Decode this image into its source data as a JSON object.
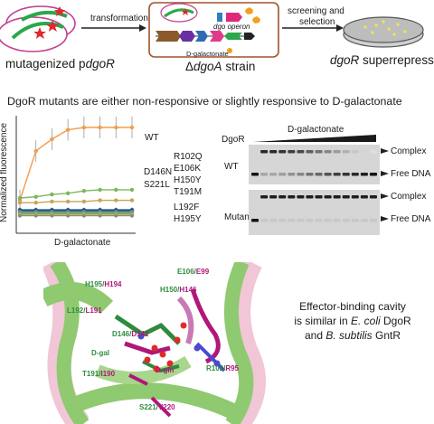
{
  "top": {
    "arrow1_label": "transformation",
    "left_caption_prefix": "mutagenized p",
    "left_caption_italic": "dgoR",
    "box_gal_label": "D-galactonate",
    "box_operon_label": "dgo operon",
    "box_strain_prefix": "Δ",
    "box_strain_italic": "dgoA",
    "box_strain_suffix": " strain",
    "arrow2_label_line1": "screening and",
    "arrow2_label_line2": "selection",
    "right_caption_italic": "dgoR",
    "right_caption_suffix": " superrepressors"
  },
  "headline": "DgoR mutants are either non-responsive or slightly responsive to D-galactonate",
  "chart": {
    "ylabel": "Normalized fluorescence",
    "xlabel": "D-galactonate",
    "wt_label": "WT",
    "mutant_labels": [
      "R102Q",
      "E106K",
      "H150Y",
      "T191M",
      "L192F",
      "H195Y"
    ],
    "d146n_label": "D146N",
    "s221l_label": "S221L"
  },
  "chart_data": {
    "type": "line",
    "title": "",
    "xlabel": "D-galactonate",
    "ylabel": "Normalized fluorescence",
    "x": [
      0,
      1,
      2,
      3,
      4,
      5,
      6,
      7
    ],
    "series": [
      {
        "name": "WT",
        "color": "#f39c4c",
        "values": [
          0.28,
          0.7,
          0.8,
          0.88,
          0.9,
          0.9,
          0.9,
          0.9
        ]
      },
      {
        "name": "D146N",
        "color": "#7bb661",
        "values": [
          0.3,
          0.31,
          0.33,
          0.34,
          0.36,
          0.37,
          0.37,
          0.37
        ]
      },
      {
        "name": "S221L",
        "color": "#c8a35a",
        "values": [
          0.26,
          0.26,
          0.27,
          0.27,
          0.27,
          0.28,
          0.28,
          0.28
        ]
      },
      {
        "name": "R102Q",
        "color": "#2f6ab3",
        "values": [
          0.2,
          0.2,
          0.2,
          0.2,
          0.2,
          0.2,
          0.2,
          0.2
        ]
      },
      {
        "name": "E106K",
        "color": "#3b3b3b",
        "values": [
          0.19,
          0.19,
          0.19,
          0.19,
          0.19,
          0.19,
          0.19,
          0.19
        ]
      },
      {
        "name": "H150Y",
        "color": "#6db6d6",
        "values": [
          0.18,
          0.18,
          0.18,
          0.18,
          0.18,
          0.18,
          0.18,
          0.18
        ]
      },
      {
        "name": "T191M",
        "color": "#3a8f3a",
        "values": [
          0.17,
          0.17,
          0.17,
          0.17,
          0.17,
          0.17,
          0.17,
          0.17
        ]
      },
      {
        "name": "L192F",
        "color": "#d9c441",
        "values": [
          0.16,
          0.16,
          0.16,
          0.16,
          0.16,
          0.16,
          0.16,
          0.16
        ]
      },
      {
        "name": "H195Y",
        "color": "#8a8a8a",
        "values": [
          0.15,
          0.15,
          0.15,
          0.15,
          0.15,
          0.15,
          0.15,
          0.15
        ]
      }
    ],
    "ylim": [
      0,
      1
    ],
    "grid": false
  },
  "gel": {
    "protein_label": "DgoR",
    "gradient_label": "D-galactonate",
    "wt_label": "WT",
    "mutant_label": "Mutant",
    "complex_label": "Complex",
    "free_label": "Free DNA",
    "wt_complex_levels": [
      0,
      0.9,
      0.9,
      0.85,
      0.8,
      0.75,
      0.65,
      0.55,
      0.45,
      0.35,
      0.25,
      0.15,
      0.08,
      0.04
    ],
    "wt_free_levels": [
      1,
      0.3,
      0.3,
      0.35,
      0.4,
      0.45,
      0.55,
      0.6,
      0.7,
      0.8,
      0.85,
      0.9,
      0.95,
      1
    ],
    "mut_complex_levels": [
      0,
      0.95,
      0.95,
      0.95,
      0.95,
      0.95,
      0.95,
      0.95,
      0.95,
      0.95,
      0.95,
      0.95,
      0.95,
      0.95
    ],
    "mut_free_levels": [
      1,
      0.15,
      0.15,
      0.15,
      0.15,
      0.15,
      0.15,
      0.15,
      0.15,
      0.15,
      0.15,
      0.15,
      0.15,
      0.15
    ]
  },
  "structure": {
    "labels": {
      "h195": "H195/",
      "h194": "H194",
      "e106": "E106/",
      "e99": "E99",
      "h150": "H150/",
      "h146": "H146",
      "l192": "L192/",
      "l191": "L191",
      "d146": "D146/",
      "d141": "D141",
      "dgal": "D-gal",
      "dgln": "D-gln",
      "r102": "R102/",
      "r95": "R95",
      "t191": "T191/",
      "i190": "I190",
      "s221": "S221/",
      "v220": "V220"
    },
    "caption_line1": "Effector-binding cavity",
    "caption_line2": "is similar in ",
    "caption_line2_italic": "E. coli",
    "caption_line2_suffix": " DgoR",
    "caption_line3_prefix": "and ",
    "caption_line3_italic": "B. subtilis",
    "caption_line3_suffix": " GntR"
  },
  "colors": {
    "green_label": "#2e8b3e",
    "magenta_label": "#b0177a",
    "box_border": "#a0522d",
    "wt_line": "#f39c4c"
  }
}
